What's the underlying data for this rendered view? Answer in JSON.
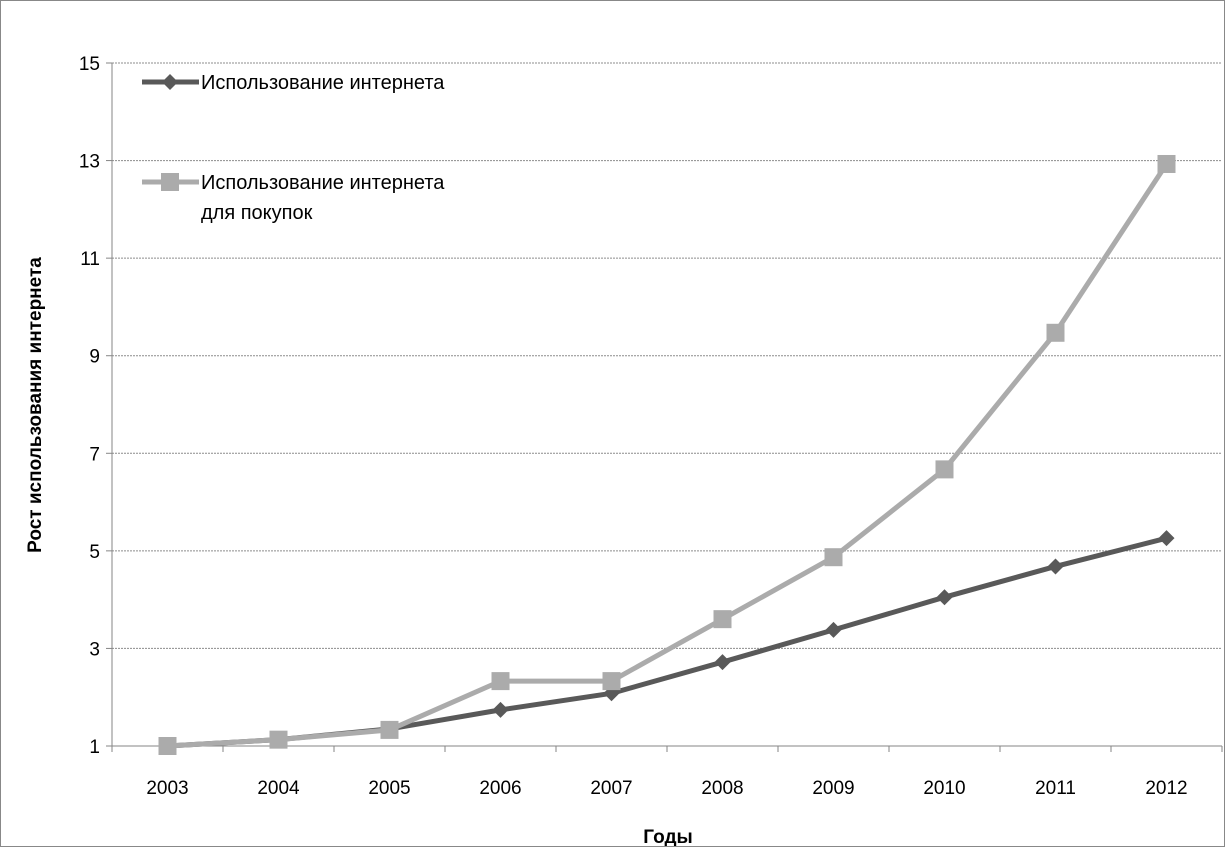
{
  "chart_data": {
    "type": "line",
    "title": "",
    "xlabel": "Годы",
    "ylabel": "Рост использования интернета",
    "categories": [
      "2003",
      "2004",
      "2005",
      "2006",
      "2007",
      "2008",
      "2009",
      "2010",
      "2011",
      "2012"
    ],
    "ylim": [
      1,
      15
    ],
    "yticks": [
      "1",
      "3",
      "5",
      "7",
      "9",
      "11",
      "13",
      "15"
    ],
    "grid": true,
    "legend_position": "top-left",
    "series": [
      {
        "name": "Использование интернета",
        "color": "#595959",
        "marker": "diamond",
        "values": [
          1.0,
          1.13,
          1.35,
          1.74,
          2.08,
          2.72,
          3.38,
          4.05,
          4.68,
          5.26
        ]
      },
      {
        "name": "Использование интернета для покупок",
        "name_lines": [
          "Использование интернета",
          "для покупок"
        ],
        "color": "#ababab",
        "marker": "square",
        "values": [
          1.0,
          1.13,
          1.33,
          2.33,
          2.33,
          3.6,
          4.87,
          6.67,
          9.47,
          12.93
        ]
      }
    ]
  }
}
